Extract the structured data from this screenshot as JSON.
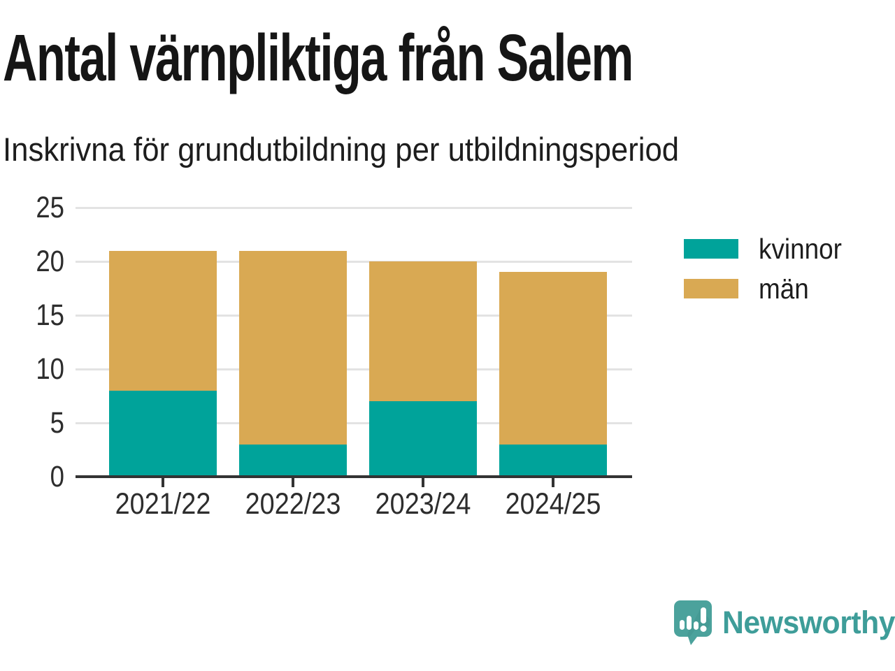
{
  "page": {
    "title": "Antal värnpliktiga från Salem",
    "subtitle": "Inskrivna för grundutbildning per utbildningsperiod"
  },
  "chart_data": {
    "type": "bar",
    "stacked": true,
    "title": "Antal värnpliktiga från Salem",
    "subtitle": "Inskrivna för grundutbildning per utbildningsperiod",
    "categories": [
      "2021/22",
      "2022/23",
      "2023/24",
      "2024/25"
    ],
    "series": [
      {
        "name": "kvinnor",
        "color": "#00A39A",
        "values": [
          8,
          3,
          7,
          3
        ]
      },
      {
        "name": "män",
        "color": "#D9A953",
        "values": [
          13,
          18,
          13,
          16
        ]
      }
    ],
    "stack_totals": [
      21,
      21,
      20,
      19
    ],
    "xlabel": "",
    "ylabel": "",
    "ylim": [
      0,
      25
    ],
    "yticks": [
      0,
      5,
      10,
      15,
      20,
      25
    ],
    "grid": true,
    "legend_position": "right"
  },
  "branding": {
    "logo_text": "Newsworthy",
    "logo_color": "#3E9D99",
    "logo_icon": "speech-bubble-bar-chart-icon",
    "logo_icon_color": "#4BA29C"
  }
}
